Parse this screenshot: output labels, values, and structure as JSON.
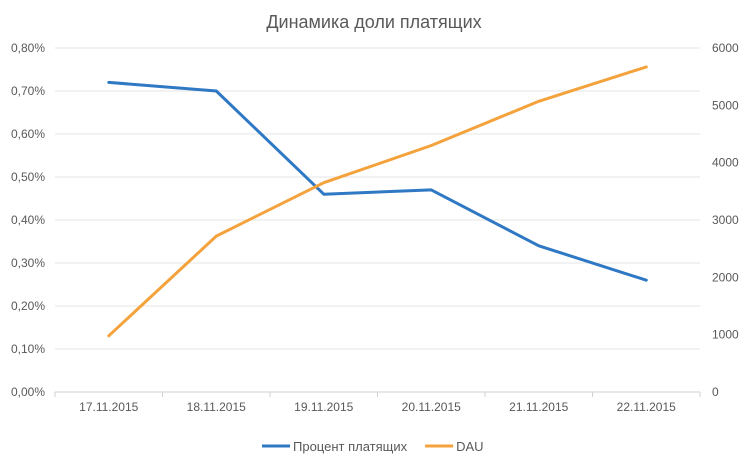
{
  "chart_data": {
    "type": "line",
    "title": "Динамика доли платящих",
    "categories": [
      "17.11.2015",
      "18.11.2015",
      "19.11.2015",
      "20.11.2015",
      "21.11.2015",
      "22.11.2015"
    ],
    "y_left": {
      "min": 0,
      "max": 0.8,
      "step": 0.1,
      "tick_labels": [
        "0,00%",
        "0,10%",
        "0,20%",
        "0,30%",
        "0,40%",
        "0,50%",
        "0,60%",
        "0,70%",
        "0,80%"
      ]
    },
    "y_right": {
      "min": 0,
      "max": 6000,
      "step": 1000,
      "tick_labels": [
        "0",
        "1000",
        "2000",
        "3000",
        "4000",
        "5000",
        "6000"
      ]
    },
    "series": [
      {
        "name": "Процент платящих",
        "axis": "left",
        "color": "#2f78c4",
        "values": [
          0.72,
          0.7,
          0.46,
          0.47,
          0.34,
          0.26
        ]
      },
      {
        "name": "DAU",
        "axis": "right",
        "color": "#f4a23c",
        "values": [
          980,
          2720,
          3650,
          4300,
          5070,
          5670
        ]
      }
    ],
    "grid": true,
    "legend_position": "bottom"
  }
}
